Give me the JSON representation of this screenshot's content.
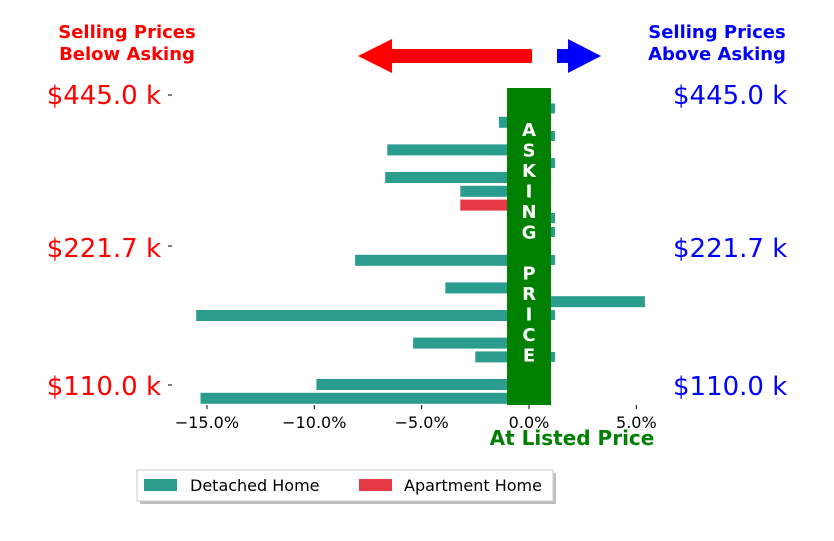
{
  "chart_data": {
    "type": "bar",
    "orientation": "horizontal",
    "title_left": [
      "Selling Prices",
      "Below Asking"
    ],
    "title_right": [
      "Selling Prices",
      "Above Asking"
    ],
    "price_labels": [
      "$445.0 k",
      "$221.7 k",
      "$110.0 k"
    ],
    "center_label_letters": [
      "A",
      "S",
      "K",
      "I",
      "N",
      "G",
      " ",
      "P",
      "R",
      "I",
      "C",
      "E"
    ],
    "xlabel": "At Listed Price",
    "xlim": [
      -16.7,
      6.4
    ],
    "xticks": [
      {
        "value": -15,
        "label": "−15.0%"
      },
      {
        "value": -10,
        "label": "−10.0%"
      },
      {
        "value": -5,
        "label": "−5.0%"
      },
      {
        "value": 0,
        "label": "0.0%"
      },
      {
        "value": 5,
        "label": "5.0%"
      }
    ],
    "legend": {
      "placement": "bottom-center"
    },
    "series": [
      {
        "name": "Detached Home",
        "color": "#2a9d8f",
        "bars": [
          {
            "row": 1,
            "value": -1.4
          },
          {
            "row": 3,
            "value": -6.6
          },
          {
            "row": 5,
            "value": -6.7
          },
          {
            "row": 6,
            "value": -3.2
          },
          {
            "row": 11,
            "value": -8.1
          },
          {
            "row": 13,
            "value": -3.9
          },
          {
            "row": 14,
            "value": 5.4
          },
          {
            "row": 15,
            "value": -15.5
          },
          {
            "row": 17,
            "value": -5.4
          },
          {
            "row": 18,
            "value": -2.5
          },
          {
            "row": 20,
            "value": -9.9
          },
          {
            "row": 21,
            "value": -15.3
          }
        ]
      },
      {
        "name": "Apartment Home",
        "color": "#e63946",
        "bars": [
          {
            "row": 7,
            "value": -3.2
          }
        ]
      }
    ],
    "colors": {
      "below": "#ff0000",
      "above": "#0000ff",
      "asking": "#008000"
    }
  }
}
